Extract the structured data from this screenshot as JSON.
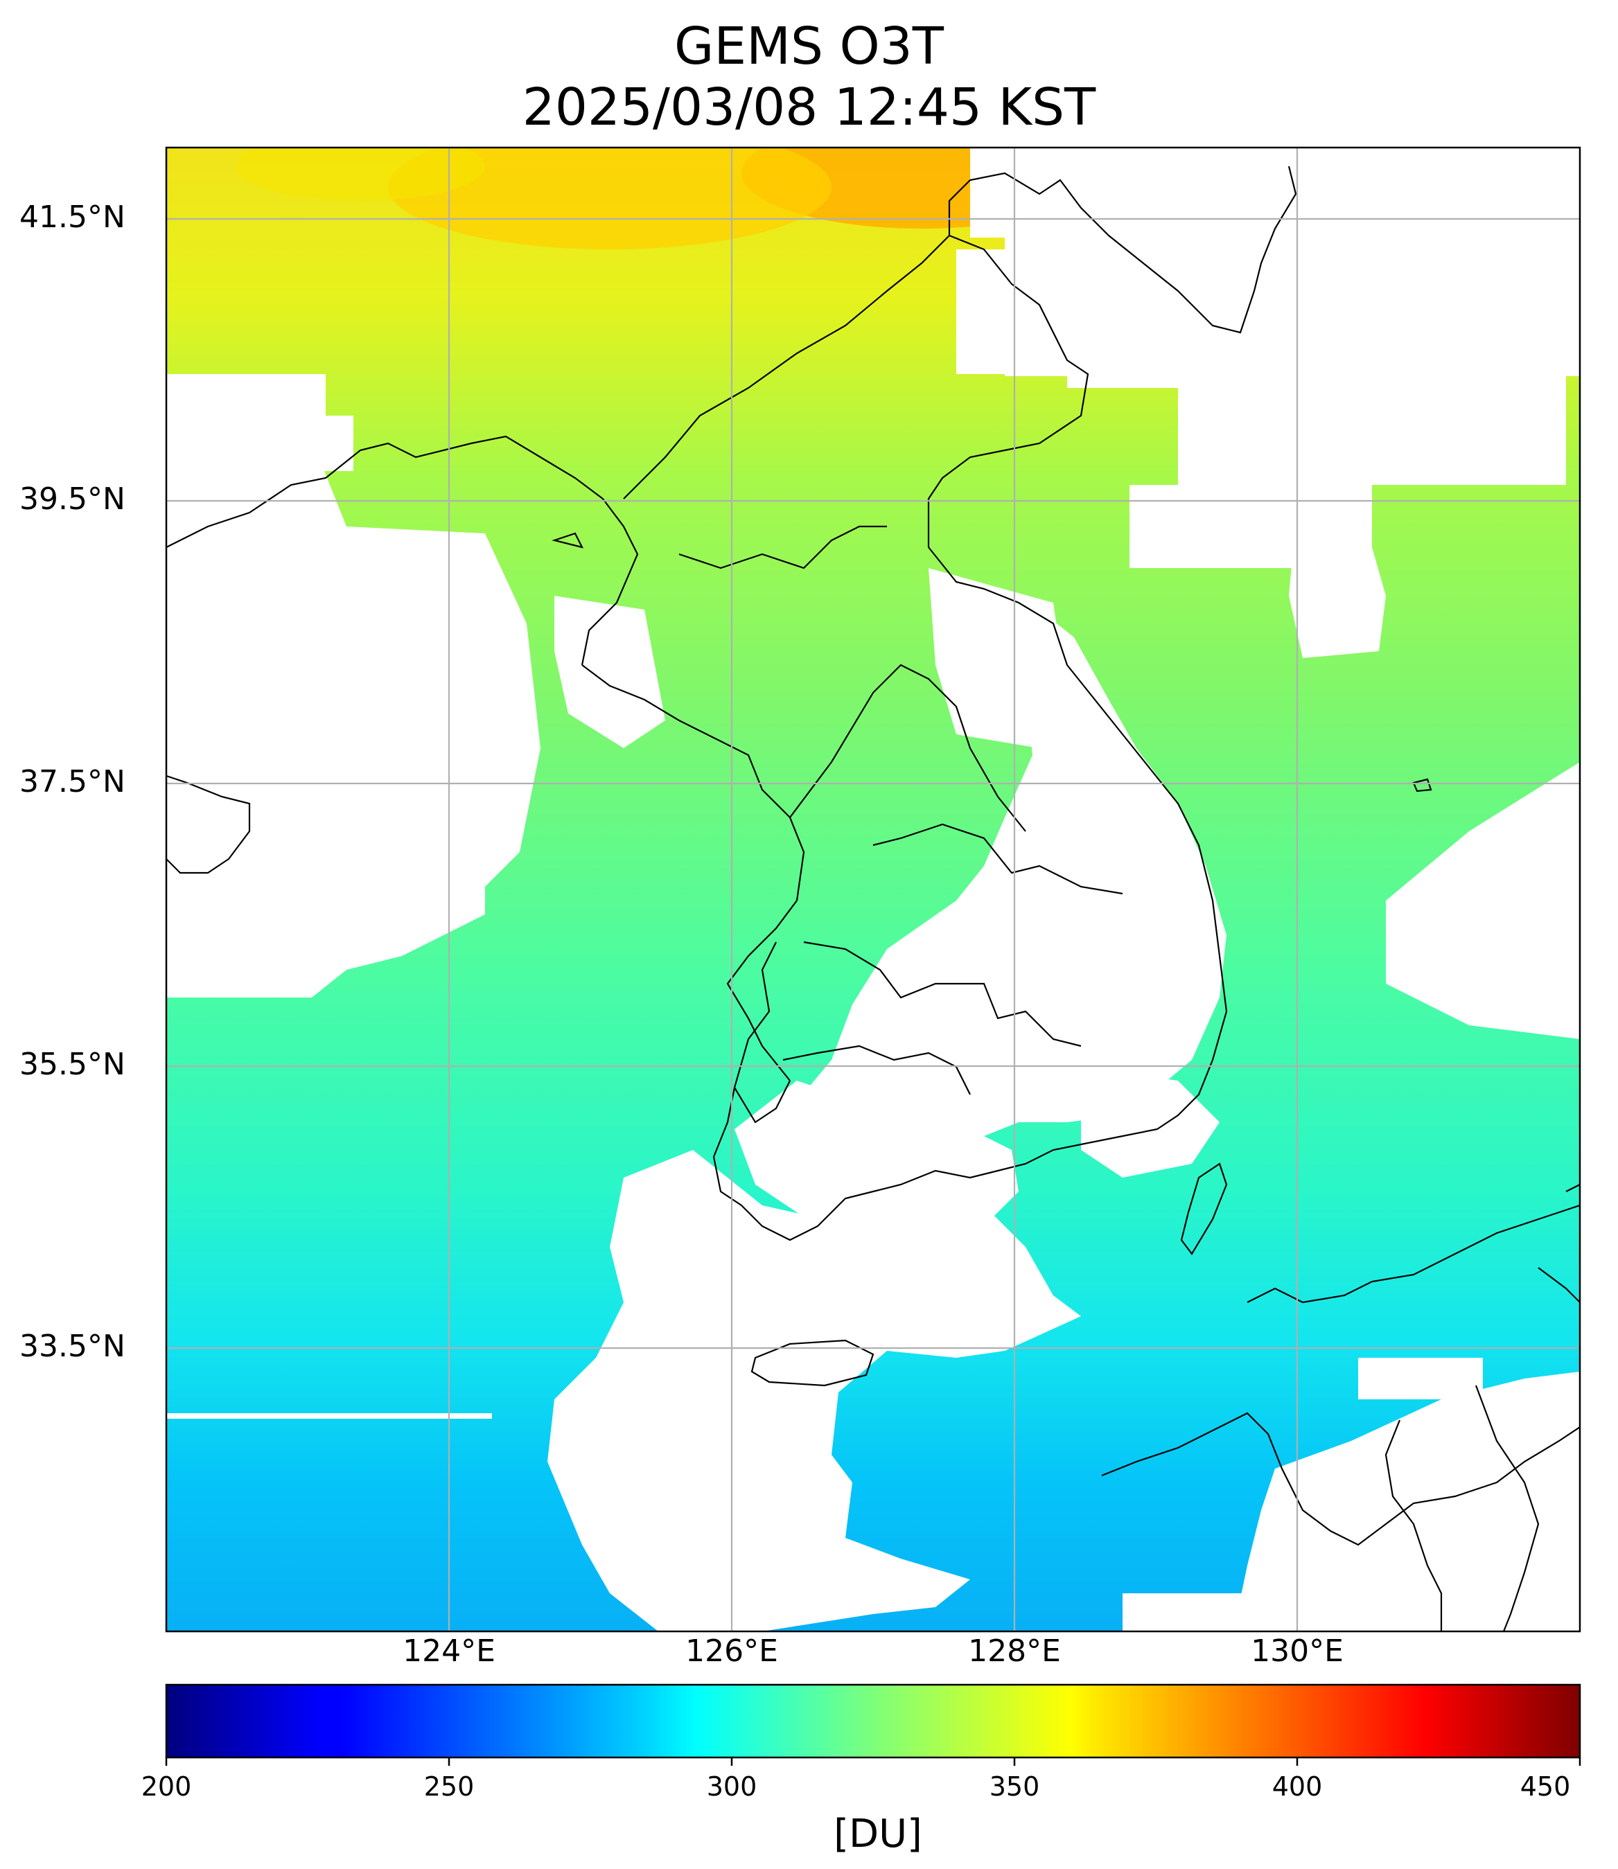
{
  "title": {
    "line1": "GEMS O3T",
    "line2": "2025/03/08 12:45 KST"
  },
  "map": {
    "lat_ticks": [
      "41.5°N",
      "39.5°N",
      "37.5°N",
      "35.5°N",
      "33.5°N"
    ],
    "lon_ticks": [
      "124°E",
      "126°E",
      "128°E",
      "130°E"
    ],
    "gridlines": true,
    "missing_data_color": "#ffffff",
    "coastline_color": "#000000"
  },
  "colorbar": {
    "colormap": "jet",
    "ticks": [
      "200",
      "250",
      "300",
      "350",
      "400",
      "450"
    ],
    "unit": "[DU]",
    "range": [
      200,
      450
    ]
  }
}
